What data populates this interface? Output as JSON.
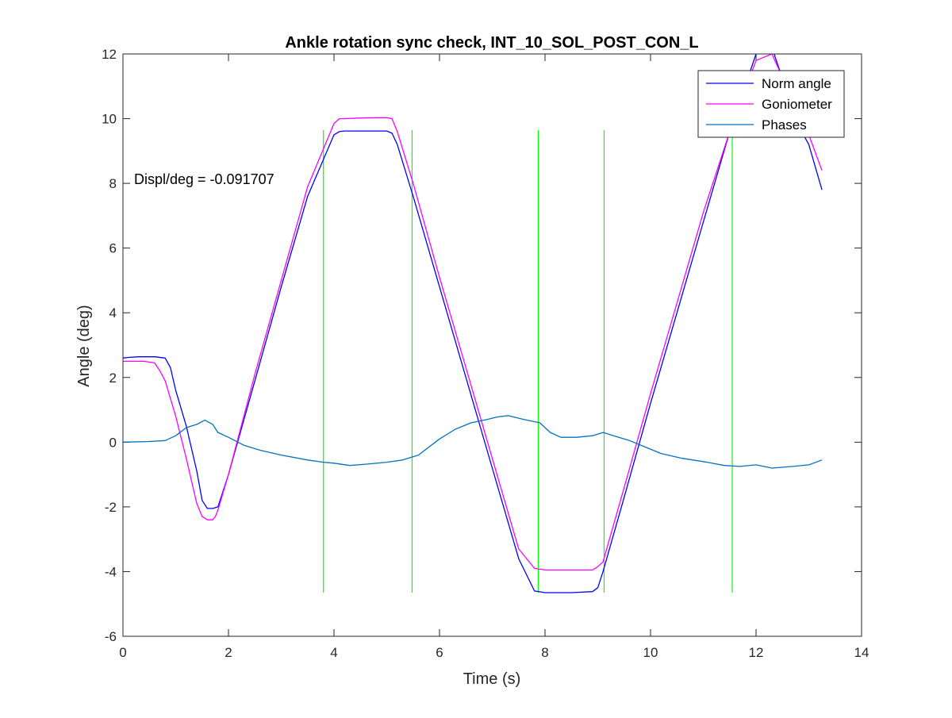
{
  "chart_data": {
    "type": "line",
    "title": "Ankle rotation sync check, INT_10_SOL_POST_CON_L",
    "xlabel": "Time (s)",
    "ylabel": "Angle (deg)",
    "xlim": [
      0,
      14
    ],
    "ylim": [
      -6,
      12
    ],
    "xticks": [
      0,
      2,
      4,
      6,
      8,
      10,
      12,
      14
    ],
    "yticks": [
      -6,
      -4,
      -2,
      0,
      2,
      4,
      6,
      8,
      10,
      12
    ],
    "grid": false,
    "legend_position": "top-right",
    "annotation": "Displ/deg = -0.091707",
    "colors": {
      "norm_angle": "#0000ff",
      "goniometer": "#ff00ff",
      "phases": "#0072bd",
      "phase_markers": "#00ff00"
    },
    "series": [
      {
        "name": "Norm angle",
        "x": [
          0,
          0.1,
          0.3,
          0.6,
          0.8,
          0.9,
          1.0,
          1.2,
          1.4,
          1.5,
          1.6,
          1.7,
          1.8,
          2.0,
          2.5,
          3.0,
          3.5,
          4.0,
          4.1,
          4.2,
          4.5,
          4.8,
          5.0,
          5.1,
          5.2,
          5.5,
          6.0,
          6.5,
          7.0,
          7.5,
          7.8,
          8.0,
          8.5,
          8.9,
          9.0,
          9.1,
          9.5,
          10.0,
          10.5,
          11.0,
          11.5,
          12.0,
          12.3,
          12.8,
          13.0,
          13.25
        ],
        "y": [
          2.6,
          2.62,
          2.64,
          2.64,
          2.6,
          2.3,
          1.6,
          0.5,
          -0.9,
          -1.8,
          -2.05,
          -2.05,
          -2.0,
          -1.0,
          1.9,
          4.8,
          7.6,
          9.5,
          9.6,
          9.62,
          9.62,
          9.62,
          9.62,
          9.55,
          9.2,
          7.6,
          4.8,
          2.0,
          -0.8,
          -3.6,
          -4.6,
          -4.65,
          -4.65,
          -4.62,
          -4.5,
          -4.0,
          -1.7,
          1.2,
          4.0,
          6.8,
          9.6,
          12.0,
          12.2,
          9.8,
          9.2,
          7.8
        ]
      },
      {
        "name": "Goniometer",
        "x": [
          0,
          0.1,
          0.4,
          0.6,
          0.7,
          0.8,
          1.0,
          1.2,
          1.4,
          1.5,
          1.6,
          1.7,
          1.75,
          1.8,
          2.0,
          2.5,
          3.0,
          3.5,
          4.0,
          4.1,
          4.2,
          4.5,
          4.8,
          5.0,
          5.1,
          5.2,
          5.5,
          6.0,
          6.5,
          7.0,
          7.5,
          7.8,
          8.0,
          8.5,
          8.9,
          9.0,
          9.1,
          9.5,
          10.0,
          10.5,
          11.0,
          11.5,
          12.0,
          12.3,
          12.8,
          13.0,
          13.25
        ],
        "y": [
          2.5,
          2.5,
          2.5,
          2.45,
          2.2,
          1.9,
          0.8,
          -0.5,
          -1.9,
          -2.3,
          -2.4,
          -2.4,
          -2.3,
          -2.1,
          -1.0,
          2.1,
          5.0,
          7.9,
          9.85,
          10.0,
          10.0,
          10.02,
          10.03,
          10.03,
          10.0,
          9.6,
          8.0,
          5.1,
          2.3,
          -0.5,
          -3.3,
          -3.9,
          -3.95,
          -3.95,
          -3.95,
          -3.85,
          -3.7,
          -1.4,
          1.5,
          4.3,
          7.1,
          9.6,
          11.8,
          12.0,
          10.2,
          9.5,
          8.4
        ]
      },
      {
        "name": "Phases",
        "x": [
          0,
          0.5,
          0.8,
          1.0,
          1.2,
          1.4,
          1.55,
          1.7,
          1.8,
          2.0,
          2.3,
          2.6,
          3.0,
          3.5,
          3.8,
          4.0,
          4.3,
          4.6,
          5.0,
          5.3,
          5.6,
          6.0,
          6.3,
          6.6,
          6.9,
          7.1,
          7.3,
          7.6,
          7.9,
          8.1,
          8.3,
          8.6,
          8.9,
          9.1,
          9.3,
          9.6,
          9.9,
          10.2,
          10.6,
          11.0,
          11.4,
          11.7,
          12.0,
          12.3,
          12.7,
          13.0,
          13.25
        ],
        "y": [
          0.0,
          0.02,
          0.05,
          0.2,
          0.45,
          0.55,
          0.68,
          0.55,
          0.3,
          0.15,
          -0.1,
          -0.25,
          -0.4,
          -0.55,
          -0.62,
          -0.65,
          -0.72,
          -0.68,
          -0.62,
          -0.55,
          -0.4,
          0.1,
          0.4,
          0.6,
          0.7,
          0.78,
          0.82,
          0.7,
          0.6,
          0.3,
          0.15,
          0.15,
          0.2,
          0.3,
          0.2,
          0.05,
          -0.15,
          -0.35,
          -0.5,
          -0.6,
          -0.72,
          -0.75,
          -0.7,
          -0.8,
          -0.75,
          -0.7,
          -0.55
        ]
      }
    ],
    "phase_markers": {
      "x": [
        3.8,
        5.48,
        7.87,
        9.12,
        11.55
      ],
      "y_range": [
        -4.65,
        9.65
      ]
    }
  }
}
